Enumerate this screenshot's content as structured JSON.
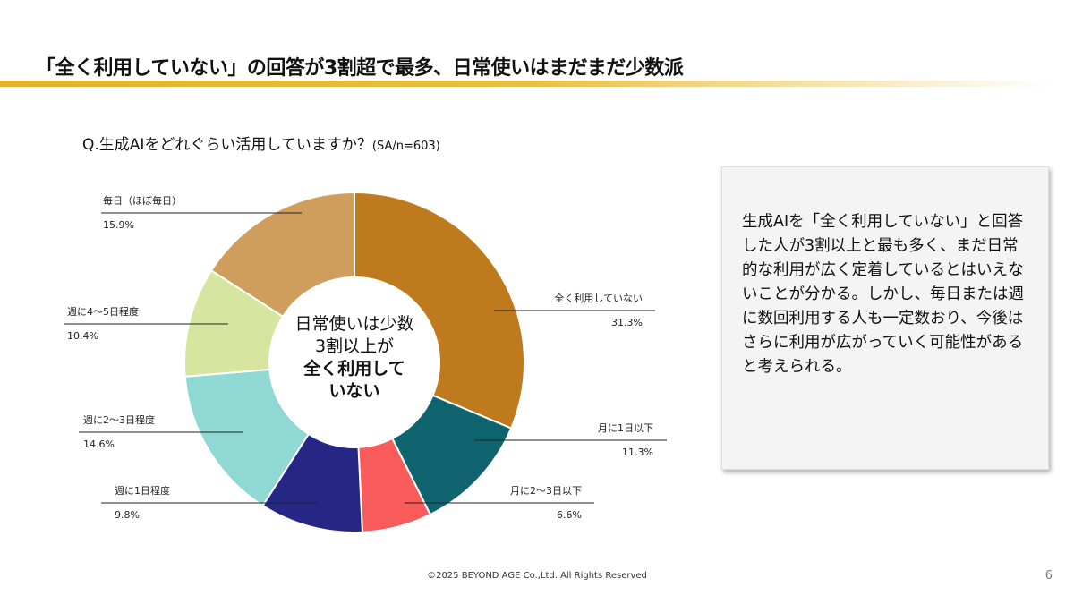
{
  "header": {
    "title": "「全く利用していない」の回答が3割超で最多、日常使いはまだまだ少数派"
  },
  "question": {
    "text": "Q.生成AIをどれぐらい活用していますか？",
    "note": "(SA/n=603)"
  },
  "chart_data": {
    "type": "pie",
    "donut": true,
    "categories": [
      "全く利用していない",
      "月に1日以下",
      "月に2〜3日以下",
      "週に1日程度",
      "週に2～3日程度",
      "週に4〜5日程度",
      "毎日（ほぼ毎日）"
    ],
    "values": [
      31.3,
      11.3,
      6.6,
      9.8,
      14.6,
      10.4,
      15.9
    ],
    "value_labels": [
      "31.3%",
      "11.3%",
      "6.6%",
      "9.8%",
      "14.6%",
      "10.4%",
      "15.9%"
    ],
    "colors": [
      "#c07a1e",
      "#0f6470",
      "#f85c5a",
      "#262685",
      "#8fd8d3",
      "#d6e5a0",
      "#d09e5c"
    ],
    "center_text": {
      "line1": "日常使いは少数",
      "line2": "3割以上が",
      "line3": "全く利用して",
      "line4": "いない"
    }
  },
  "note": {
    "text": "生成AIを「全く利用していない」と回答した人が3割以上と最も多く、まだ日常的な利用が広く定着しているとはいえないことが分かる。しかし、毎日または週に数回利用する人も一定数おり、今後はさらに利用が広がっていく可能性があると考えられる。"
  },
  "footer": {
    "copyright": "©2025 BEYOND AGE Co.,Ltd. All Rights Reserved",
    "page": "6"
  }
}
